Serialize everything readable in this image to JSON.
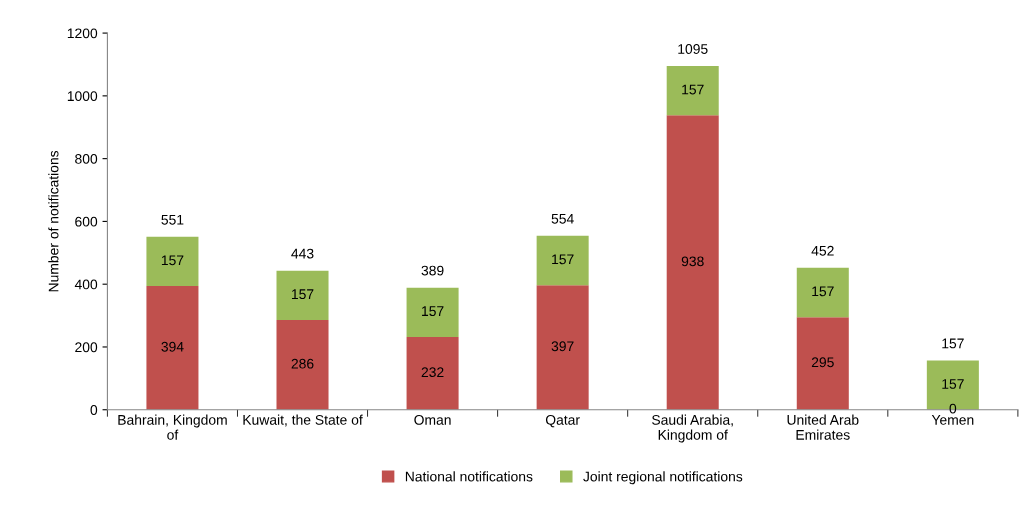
{
  "chart_data": {
    "type": "bar",
    "stacked": true,
    "ylabel": "Number of notifications",
    "categories": [
      "Bahrain, Kingdom\nof",
      "Kuwait, the State of",
      "Oman",
      "Qatar",
      "Saudi Arabia,\nKingdom of",
      "United Arab\nEmirates",
      "Yemen"
    ],
    "series": [
      {
        "name": "National notifications",
        "color": "#c0504d",
        "values": [
          394,
          286,
          232,
          397,
          938,
          295,
          0
        ]
      },
      {
        "name": "Joint regional notifications",
        "color": "#9bbb59",
        "values": [
          157,
          157,
          157,
          157,
          157,
          157,
          157
        ]
      }
    ],
    "data_labels": true,
    "totals": [
      "551",
      "443",
      "389",
      "554",
      "1095",
      "452",
      "157"
    ],
    "ylim": [
      0,
      1200
    ],
    "yticks": [
      0,
      200,
      400,
      600,
      800,
      1000,
      1200
    ],
    "grid": false,
    "legend": "bottom"
  }
}
